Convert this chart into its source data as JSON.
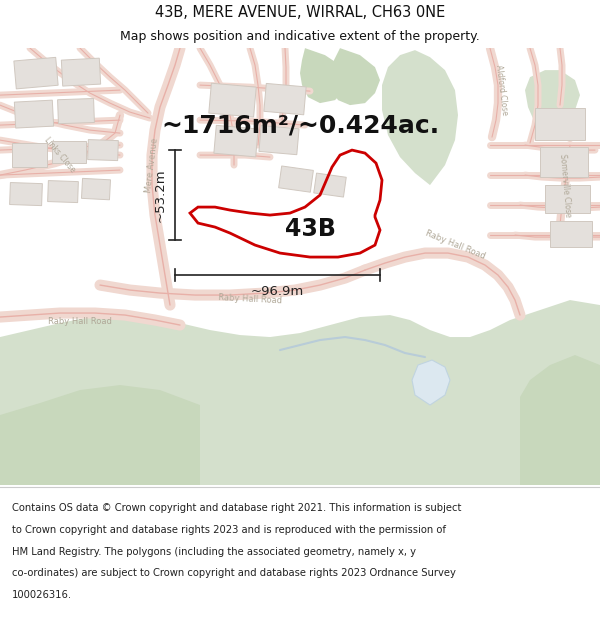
{
  "title_line1": "43B, MERE AVENUE, WIRRAL, CH63 0NE",
  "title_line2": "Map shows position and indicative extent of the property.",
  "area_label": "~1716m²/~0.424ac.",
  "width_label": "~96.9m",
  "height_label": "~53.2m",
  "property_label": "43B",
  "footer_lines": [
    "Contains OS data © Crown copyright and database right 2021. This information is subject",
    "to Crown copyright and database rights 2023 and is reproduced with the permission of",
    "HM Land Registry. The polygons (including the associated geometry, namely x, y",
    "co-ordinates) are subject to Crown copyright and database rights 2023 Ordnance Survey",
    "100026316."
  ],
  "map_bg": "#f0eeec",
  "road_color": "#e8b0a8",
  "green_light": "#d4e0cc",
  "green_mid": "#c8d8bc",
  "blue_light": "#c8dce8",
  "building_fill": "#e4e0dc",
  "building_edge": "#d0c8c0",
  "property_color": "#cc0000",
  "dim_color": "#222222",
  "label_color": "#111111",
  "footer_bg": "#ffffff",
  "title_fontsize": 10.5,
  "subtitle_fontsize": 9.0,
  "area_fontsize": 18,
  "label_43b_fontsize": 17,
  "dim_fontsize": 9.5,
  "footer_fontsize": 7.2,
  "road_label_fontsize": 6.0,
  "road_label_color": "#b0a898"
}
